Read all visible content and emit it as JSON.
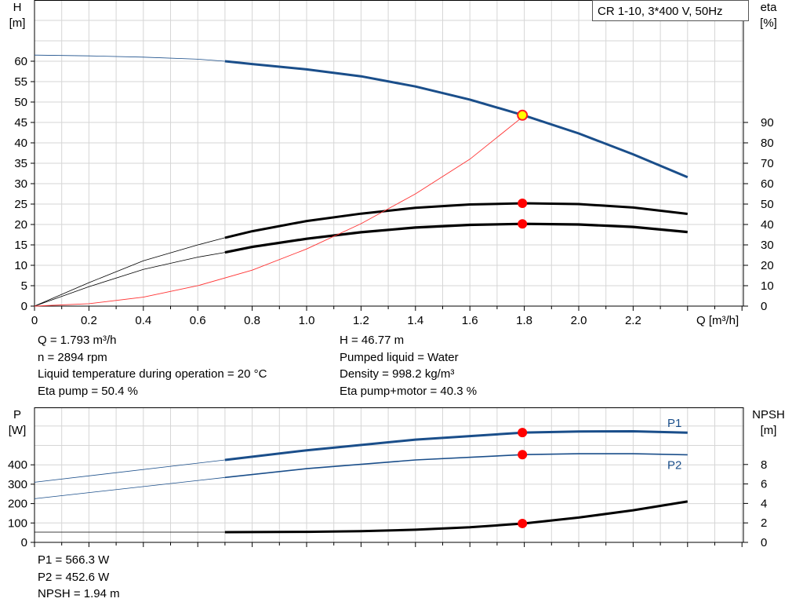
{
  "chart_data": [
    {
      "id": "top",
      "type": "line",
      "title": "CR 1-10, 3*400 V, 50Hz",
      "xlabel": "Q [m³/h]",
      "ylabel": [
        "H",
        "[m]"
      ],
      "ylabel_right": [
        "eta",
        "[%]"
      ],
      "xlim": [
        0,
        2.6
      ],
      "ylim": [
        0,
        75
      ],
      "ylim_right": [
        0,
        150
      ],
      "x_ticks": [
        0,
        0.2,
        0.4,
        0.6,
        0.8,
        1.0,
        1.2,
        1.4,
        1.6,
        1.8,
        2.0,
        2.2
      ],
      "x_tick_labels": [
        "0",
        "0.2",
        "0.4",
        "0.6",
        "0.8",
        "1.0",
        "1.2",
        "1.4",
        "1.6",
        "1.8",
        "2.0",
        "2.2"
      ],
      "y_ticks": [
        0,
        5,
        10,
        15,
        20,
        25,
        30,
        35,
        40,
        45,
        50,
        55,
        60
      ],
      "y_ticks_right": [
        0,
        10,
        20,
        30,
        40,
        50,
        60,
        70,
        80,
        90
      ],
      "grid": true,
      "series": [
        {
          "key": "H",
          "axis": "left",
          "color": "#1a4e8a",
          "x": [
            0,
            0.2,
            0.4,
            0.6,
            0.7,
            0.8,
            1.0,
            1.2,
            1.4,
            1.6,
            1.8,
            2.0,
            2.2,
            2.4
          ],
          "values": [
            61.5,
            61.3,
            61.0,
            60.5,
            60.0,
            59.3,
            58.0,
            56.3,
            53.8,
            50.6,
            46.7,
            42.3,
            37.2,
            31.6
          ],
          "thin_until": 0.7
        },
        {
          "key": "eta_pump",
          "axis": "right",
          "color": "#000000",
          "x": [
            0,
            0.2,
            0.4,
            0.6,
            0.7,
            0.8,
            1.0,
            1.2,
            1.4,
            1.6,
            1.8,
            2.0,
            2.2,
            2.4
          ],
          "values": [
            0,
            11.5,
            22.2,
            30.0,
            33.5,
            36.7,
            41.7,
            45.3,
            48.2,
            49.8,
            50.4,
            50.0,
            48.3,
            45.2
          ],
          "thin_until": 0.7
        },
        {
          "key": "eta_pump_motor",
          "axis": "right",
          "color": "#000000",
          "x": [
            0,
            0.2,
            0.4,
            0.6,
            0.7,
            0.8,
            1.0,
            1.2,
            1.4,
            1.6,
            1.8,
            2.0,
            2.2,
            2.4
          ],
          "values": [
            0,
            9.5,
            18.0,
            24.0,
            26.3,
            29.0,
            33.0,
            36.2,
            38.5,
            39.8,
            40.3,
            40.0,
            38.8,
            36.3
          ],
          "thin_until": 0.7,
          "width": 3.2
        },
        {
          "key": "system_curve",
          "axis": "left",
          "color": "#ff3333",
          "x": [
            0,
            0.2,
            0.4,
            0.6,
            0.8,
            1.0,
            1.2,
            1.4,
            1.6,
            1.8
          ],
          "values": [
            0,
            0.6,
            2.2,
            5.0,
            8.8,
            14.0,
            20.2,
            27.5,
            36.0,
            46.7
          ],
          "thin_until": 1.8
        }
      ],
      "markers": [
        {
          "x": 1.793,
          "y": 46.77,
          "axis": "left",
          "fill": "#ffff00",
          "stroke": "#ff2020"
        },
        {
          "x": 1.793,
          "y": 50.4,
          "axis": "right",
          "fill": "#ff0000",
          "stroke": "#ff0000"
        },
        {
          "x": 1.793,
          "y": 40.3,
          "axis": "right",
          "fill": "#ff0000",
          "stroke": "#ff0000"
        }
      ]
    },
    {
      "id": "bottom",
      "type": "line",
      "ylabel": [
        "P",
        "[W]"
      ],
      "ylabel_right": [
        "NPSH",
        "[m]"
      ],
      "xlim": [
        0,
        2.6
      ],
      "ylim": [
        0,
        600
      ],
      "ylim_right": [
        0,
        12
      ],
      "y_ticks": [
        0,
        100,
        200,
        300,
        400
      ],
      "y_ticks_right": [
        0,
        2,
        4,
        6,
        8
      ],
      "grid": true,
      "series": [
        {
          "key": "P1",
          "name": "P1",
          "axis": "left",
          "color": "#1a4e8a",
          "x": [
            0,
            0.7,
            1.0,
            1.4,
            1.8,
            2.0,
            2.2,
            2.4
          ],
          "values": [
            310,
            425,
            475,
            530,
            566.3,
            572,
            573,
            566
          ],
          "thin_until": 0.7
        },
        {
          "key": "P2",
          "name": "P2",
          "axis": "left",
          "color": "#1a4e8a",
          "x": [
            0,
            0.7,
            1.0,
            1.4,
            1.8,
            2.0,
            2.2,
            2.4
          ],
          "values": [
            225,
            335,
            380,
            425,
            452.6,
            457,
            457,
            452
          ],
          "thin_until": 0.7,
          "width": 1.6
        },
        {
          "key": "NPSH",
          "axis": "right",
          "color": "#000000",
          "x": [
            0,
            0.7,
            1.0,
            1.2,
            1.4,
            1.6,
            1.8,
            2.0,
            2.2,
            2.4
          ],
          "values": [
            1.05,
            1.05,
            1.08,
            1.15,
            1.3,
            1.55,
            1.94,
            2.55,
            3.3,
            4.2
          ],
          "thin_until": 0.7
        }
      ],
      "markers": [
        {
          "x": 1.793,
          "y": 566.3,
          "axis": "left",
          "fill": "#ff0000",
          "stroke": "#ff0000"
        },
        {
          "x": 1.793,
          "y": 452.6,
          "axis": "left",
          "fill": "#ff0000",
          "stroke": "#ff0000"
        },
        {
          "x": 1.793,
          "y": 1.94,
          "axis": "right",
          "fill": "#ff0000",
          "stroke": "#ff0000"
        }
      ]
    }
  ],
  "info": {
    "left": [
      "Q = 1.793 m³/h",
      "n = 2894 rpm",
      "Liquid temperature during operation = 20 °C",
      "Eta pump = 50.4 %"
    ],
    "right": [
      "H = 46.77 m",
      "Pumped liquid = Water",
      "Density = 998.2 kg/m³",
      "Eta pump+motor = 40.3 %"
    ],
    "bottom": [
      "P1 = 566.3 W",
      "P2 = 452.6 W",
      "NPSH = 1.94 m"
    ]
  }
}
